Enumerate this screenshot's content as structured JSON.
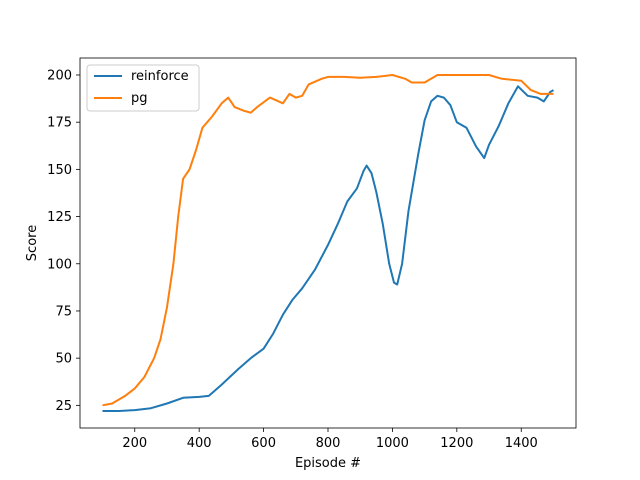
{
  "chart_data": {
    "type": "line",
    "xlabel": "Episode #",
    "ylabel": "Score",
    "xlim": [
      30,
      1570
    ],
    "ylim": [
      13,
      209
    ],
    "xticks": [
      200,
      400,
      600,
      800,
      1000,
      1200,
      1400
    ],
    "yticks": [
      25,
      50,
      75,
      100,
      125,
      150,
      175,
      200
    ],
    "grid": false,
    "legend_position": "top-left",
    "series": [
      {
        "name": "reinforce",
        "color": "#1f77b4",
        "points": [
          [
            100,
            22
          ],
          [
            150,
            22
          ],
          [
            200,
            22.5
          ],
          [
            250,
            23.5
          ],
          [
            300,
            26
          ],
          [
            350,
            29
          ],
          [
            400,
            29.5
          ],
          [
            430,
            30
          ],
          [
            470,
            36
          ],
          [
            520,
            44
          ],
          [
            560,
            50
          ],
          [
            600,
            55
          ],
          [
            630,
            63
          ],
          [
            660,
            73
          ],
          [
            690,
            81
          ],
          [
            720,
            87
          ],
          [
            760,
            97
          ],
          [
            800,
            110
          ],
          [
            830,
            121
          ],
          [
            860,
            133
          ],
          [
            890,
            140
          ],
          [
            910,
            149
          ],
          [
            920,
            152
          ],
          [
            935,
            148
          ],
          [
            950,
            138
          ],
          [
            970,
            121
          ],
          [
            990,
            100
          ],
          [
            1005,
            90
          ],
          [
            1015,
            89
          ],
          [
            1030,
            100
          ],
          [
            1050,
            128
          ],
          [
            1080,
            158
          ],
          [
            1100,
            176
          ],
          [
            1120,
            186
          ],
          [
            1140,
            189
          ],
          [
            1160,
            188
          ],
          [
            1180,
            184
          ],
          [
            1200,
            175
          ],
          [
            1230,
            172
          ],
          [
            1260,
            162
          ],
          [
            1285,
            156
          ],
          [
            1300,
            163
          ],
          [
            1330,
            173
          ],
          [
            1360,
            185
          ],
          [
            1390,
            194
          ],
          [
            1420,
            189
          ],
          [
            1450,
            188
          ],
          [
            1470,
            186
          ],
          [
            1490,
            191
          ],
          [
            1500,
            192
          ]
        ]
      },
      {
        "name": "pg",
        "color": "#ff7f0e",
        "points": [
          [
            100,
            25
          ],
          [
            130,
            26
          ],
          [
            170,
            30
          ],
          [
            200,
            34
          ],
          [
            230,
            40
          ],
          [
            260,
            50
          ],
          [
            280,
            60
          ],
          [
            300,
            77
          ],
          [
            320,
            100
          ],
          [
            335,
            125
          ],
          [
            350,
            145
          ],
          [
            370,
            150
          ],
          [
            390,
            160
          ],
          [
            410,
            172
          ],
          [
            440,
            178
          ],
          [
            470,
            185
          ],
          [
            490,
            188
          ],
          [
            510,
            183
          ],
          [
            540,
            181
          ],
          [
            560,
            180
          ],
          [
            580,
            183
          ],
          [
            620,
            188
          ],
          [
            660,
            185
          ],
          [
            680,
            190
          ],
          [
            700,
            188
          ],
          [
            720,
            189
          ],
          [
            740,
            195
          ],
          [
            780,
            198
          ],
          [
            800,
            199
          ],
          [
            850,
            199
          ],
          [
            900,
            198.5
          ],
          [
            950,
            199
          ],
          [
            1000,
            200
          ],
          [
            1040,
            198
          ],
          [
            1060,
            196
          ],
          [
            1100,
            196
          ],
          [
            1140,
            200
          ],
          [
            1200,
            200
          ],
          [
            1300,
            200
          ],
          [
            1340,
            198
          ],
          [
            1400,
            197
          ],
          [
            1430,
            192
          ],
          [
            1460,
            190
          ],
          [
            1500,
            190
          ]
        ]
      }
    ]
  }
}
